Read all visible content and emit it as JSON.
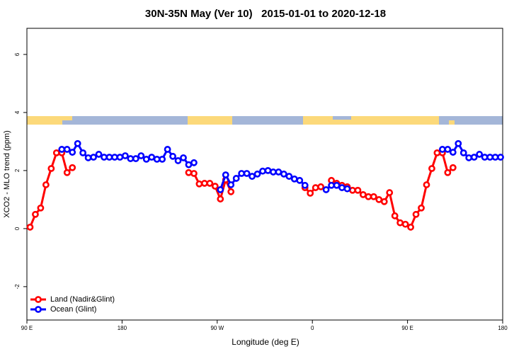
{
  "chart_data": {
    "type": "line",
    "title": "30N-35N May (Ver 10)   2015-01-01 to 2020-12-18",
    "xlabel": "Longitude (deg E)",
    "ylabel": "XCO2 - MLO trend (ppm)",
    "xlim": [
      90,
      540
    ],
    "ylim": [
      -3.15,
      6.9
    ],
    "xticks": [
      {
        "value": 90,
        "label": "90 E"
      },
      180,
      {
        "value": 270,
        "label": "90 W"
      },
      {
        "value": 360,
        "label": "0"
      },
      {
        "value": 450,
        "label": "90 E"
      },
      {
        "value": 540,
        "label": "180"
      }
    ],
    "yticks": [
      -2,
      0,
      2,
      4,
      6
    ],
    "legend": "bottom-left",
    "x": [
      93,
      98,
      103,
      108,
      113,
      118,
      123,
      128,
      133,
      138,
      143,
      148,
      153,
      158,
      163,
      168,
      173,
      178,
      183,
      188,
      193,
      198,
      203,
      208,
      213,
      218,
      223,
      228,
      233,
      238,
      243,
      248,
      253,
      258,
      263,
      268,
      273,
      278,
      283,
      288,
      293,
      298,
      303,
      308,
      313,
      318,
      323,
      328,
      333,
      338,
      343,
      348,
      353,
      358,
      363,
      368,
      373,
      378,
      383,
      388,
      393,
      398,
      403,
      408,
      413,
      418,
      423,
      428,
      433,
      438,
      443,
      448,
      453,
      458,
      463,
      468,
      473,
      478,
      483,
      488,
      493,
      498,
      503,
      508,
      513,
      518,
      523,
      528,
      533,
      538
    ],
    "series": [
      {
        "name": "Land (Nadir&Glint)",
        "color": "#ff0000",
        "values": [
          0.05,
          0.49,
          0.71,
          1.51,
          2.07,
          2.61,
          2.61,
          1.93,
          2.1,
          null,
          null,
          null,
          null,
          null,
          null,
          null,
          null,
          null,
          null,
          null,
          null,
          null,
          null,
          null,
          null,
          null,
          null,
          null,
          null,
          null,
          1.93,
          1.9,
          1.54,
          1.56,
          1.56,
          1.46,
          1.02,
          1.68,
          1.27,
          null,
          null,
          null,
          null,
          null,
          null,
          null,
          null,
          null,
          null,
          null,
          null,
          null,
          1.41,
          1.22,
          1.41,
          1.44,
          null,
          1.66,
          1.56,
          1.49,
          1.44,
          1.32,
          1.32,
          1.17,
          1.1,
          1.1,
          1.0,
          0.93,
          1.24,
          0.44,
          0.2,
          0.15,
          0.05,
          0.49,
          0.71,
          1.51,
          2.07,
          2.61,
          2.61,
          1.93,
          2.1,
          null,
          null,
          null,
          null,
          null,
          null,
          null,
          null,
          null
        ]
      },
      {
        "name": "Ocean (Glint)",
        "color": "#0000ff",
        "values": [
          null,
          null,
          null,
          null,
          null,
          null,
          2.73,
          2.73,
          2.63,
          2.93,
          2.61,
          2.44,
          2.46,
          2.56,
          2.46,
          2.46,
          2.46,
          2.46,
          2.51,
          2.41,
          2.41,
          2.51,
          2.39,
          2.46,
          2.39,
          2.39,
          2.73,
          2.49,
          2.34,
          2.44,
          2.2,
          2.27,
          null,
          null,
          null,
          null,
          1.34,
          1.85,
          1.51,
          1.73,
          1.9,
          1.9,
          1.8,
          1.88,
          1.98,
          2.0,
          1.95,
          1.95,
          1.88,
          1.8,
          1.71,
          1.66,
          1.49,
          null,
          null,
          null,
          1.34,
          1.49,
          1.49,
          1.41,
          1.37,
          null,
          null,
          null,
          null,
          null,
          null,
          null,
          null,
          null,
          null,
          null,
          null,
          null,
          null,
          null,
          null,
          null,
          2.73,
          2.73,
          2.63,
          2.93,
          2.61,
          2.44,
          2.46,
          2.56,
          2.46,
          2.46,
          2.46,
          2.46
        ]
      }
    ]
  }
}
